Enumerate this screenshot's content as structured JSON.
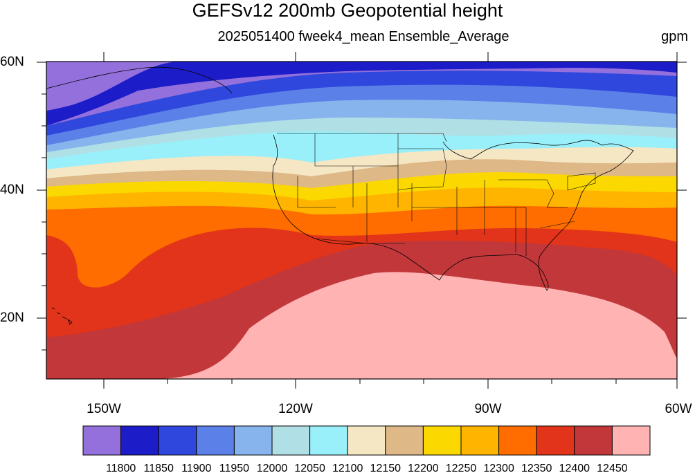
{
  "title": "GEFSv12 200mb Geopotential height",
  "subtitle": "2025051400 fweek4_mean Ensemble_Average",
  "units": "gpm",
  "lat_labels": [
    "60N",
    "40N",
    "20N"
  ],
  "lon_labels": [
    "150W",
    "120W",
    "90W",
    "60W"
  ],
  "colorbar": {
    "labels": [
      "11800",
      "11850",
      "11900",
      "11950",
      "12000",
      "12050",
      "12100",
      "12150",
      "12200",
      "12250",
      "12300",
      "12350",
      "12400",
      "12450"
    ],
    "colors": [
      "#9370db",
      "#1c1cc8",
      "#2f47dc",
      "#5b80e8",
      "#87b4ec",
      "#b0e0e6",
      "#99f0fa",
      "#f5e6c4",
      "#deb887",
      "#fad800",
      "#ffb400",
      "#ff6d00",
      "#e1341a",
      "#c2373a",
      "#ffb3b3"
    ]
  },
  "chart_data": {
    "type": "filled-contour map",
    "variable": "200mb Geopotential height",
    "units": "gpm",
    "lon_range": [
      -159,
      -60
    ],
    "lat_range": [
      10,
      60
    ],
    "lat_ticks": [
      60,
      40,
      20
    ],
    "lon_ticks": [
      -150,
      -120,
      -90,
      -60
    ],
    "contour_levels": [
      11800,
      11850,
      11900,
      11950,
      12000,
      12050,
      12100,
      12150,
      12200,
      12250,
      12300,
      12350,
      12400,
      12450
    ]
  }
}
